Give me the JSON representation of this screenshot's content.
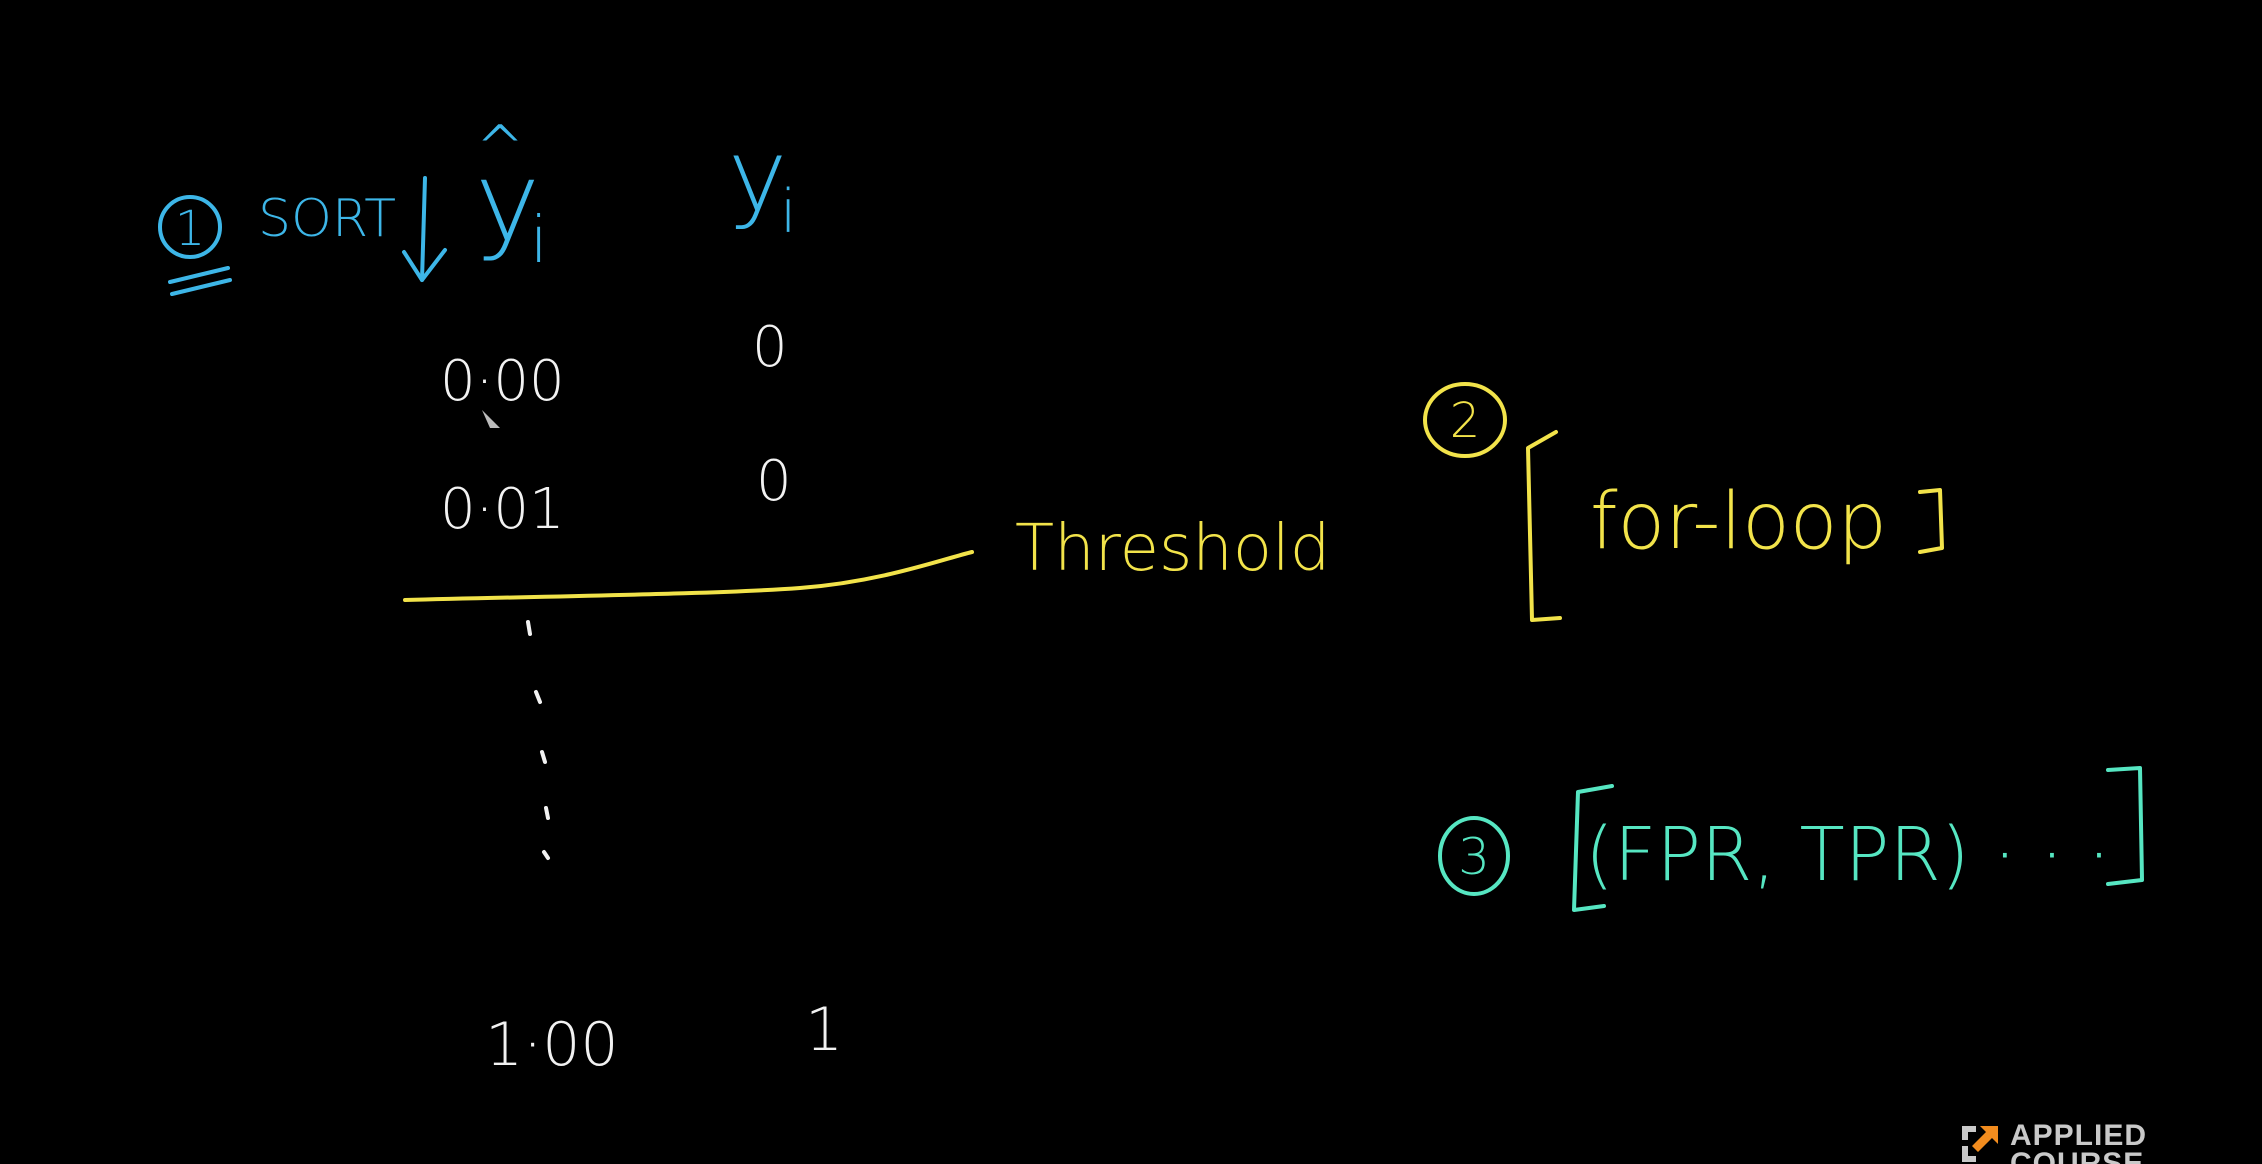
{
  "step1": {
    "number": "1",
    "label": "SORT",
    "pred_header_hat": "^",
    "pred_header": "y",
    "pred_header_sub": "i",
    "true_header": "y",
    "true_header_sub": "i"
  },
  "rows": [
    {
      "pred": "0·00",
      "true": "0"
    },
    {
      "pred": "0·01",
      "true": "0"
    },
    {
      "pred": "1·00",
      "true": "1"
    }
  ],
  "threshold_label": "Threshold",
  "step2": {
    "number": "2",
    "text": "for-loop"
  },
  "step3": {
    "number": "3",
    "text": "(FPR, TPR) · · ·"
  },
  "logo": {
    "text": "APPLIED COURSE"
  },
  "colors": {
    "background": "#000000",
    "chalk_white": "#f2f2f2",
    "blue": "#3db6e8",
    "yellow": "#f2e34a",
    "green": "#56e6c2"
  }
}
